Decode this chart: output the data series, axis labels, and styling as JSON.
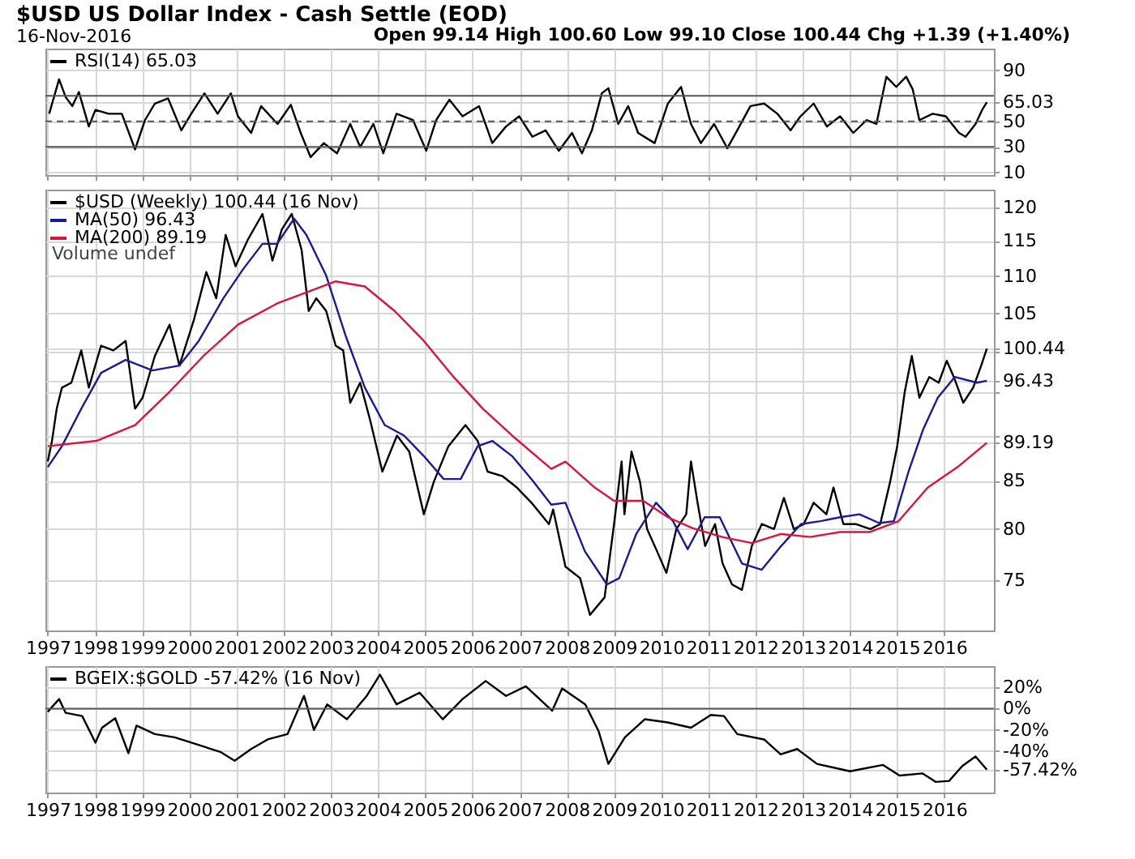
{
  "chart_data": [
    {
      "type": "line",
      "title": "$USD US Dollar Index - Cash Settle (EOD)",
      "subtitle": "16-Nov-2016",
      "annotations": [
        "Open 99.14 High 100.60 Low 99.10 Close 100.44 Chg +1.39 (+1.40%)"
      ],
      "series": [
        {
          "name": "RSI(14) 65.03",
          "color": "#000000",
          "x": [
            1997.03,
            1997.24,
            1997.38,
            1997.52,
            1997.66,
            1997.87,
            1998.01,
            1998.29,
            1998.57,
            1998.85,
            1999.06,
            1999.27,
            1999.55,
            1999.83,
            2000.04,
            2000.32,
            2000.6,
            2000.88,
            2001.03,
            2001.31,
            2001.52,
            2001.87,
            2002.15,
            2002.36,
            2002.57,
            2002.85,
            2003.13,
            2003.41,
            2003.62,
            2003.9,
            2004.11,
            2004.39,
            2004.74,
            2005.02,
            2005.23,
            2005.51,
            2005.79,
            2006.14,
            2006.42,
            2006.71,
            2006.99,
            2007.27,
            2007.55,
            2007.83,
            2008.11,
            2008.32,
            2008.53,
            2008.74,
            2008.88,
            2009.09,
            2009.3,
            2009.51,
            2009.86,
            2010.14,
            2010.42,
            2010.63,
            2010.84,
            2011.12,
            2011.4,
            2011.61,
            2011.89,
            2012.18,
            2012.46,
            2012.74,
            2012.95,
            2013.23,
            2013.51,
            2013.79,
            2014.07,
            2014.35,
            2014.56,
            2014.77,
            2014.98,
            2015.19,
            2015.33,
            2015.47,
            2015.75,
            2016.03,
            2016.31,
            2016.45,
            2016.66,
            2016.8,
            2016.9
          ],
          "values": [
            56,
            83,
            69,
            62,
            73,
            46,
            59,
            56,
            56,
            28,
            51,
            64,
            68,
            43,
            56,
            72,
            56,
            72,
            54,
            41,
            62,
            48,
            63,
            41,
            22,
            33,
            25,
            48,
            30,
            48,
            25,
            56,
            51,
            27,
            51,
            67,
            54,
            62,
            33,
            46,
            54,
            38,
            43,
            27,
            41,
            25,
            43,
            72,
            76,
            48,
            62,
            41,
            33,
            64,
            77,
            48,
            33,
            48,
            29,
            43,
            62,
            64,
            56,
            43,
            54,
            64,
            46,
            54,
            41,
            51,
            48,
            85,
            77,
            85,
            75,
            51,
            56,
            54,
            41,
            38,
            48,
            59,
            65.03
          ]
        }
      ],
      "xlim": [
        1996.95,
        2017.05
      ],
      "xticks": [
        1997,
        1998,
        1999,
        2000,
        2001,
        2002,
        2003,
        2004,
        2005,
        2006,
        2007,
        2008,
        2009,
        2010,
        2011,
        2012,
        2013,
        2014,
        2015,
        2016
      ],
      "ylim": [
        8,
        107
      ],
      "yticks": [
        10,
        30,
        50,
        65.03,
        90
      ],
      "ref_lines": [
        {
          "axis": "y",
          "value": 70,
          "color": "#555555"
        },
        {
          "axis": "y",
          "value": 50,
          "color": "#555555",
          "line_style": "dashed"
        },
        {
          "axis": "y",
          "value": 30,
          "color": "#555555"
        }
      ],
      "grid": true,
      "legend": "top left",
      "tick_labels": "y"
    },
    {
      "type": "line",
      "log": "y",
      "annotations": [
        "Volume undef"
      ],
      "series": [
        {
          "name": "$USD (Weekly) 100.44 (16 Nov)",
          "color": "#000000",
          "x": [
            1997.0,
            1997.09,
            1997.19,
            1997.3,
            1997.5,
            1997.71,
            1997.87,
            1998.13,
            1998.39,
            1998.65,
            1998.85,
            1999.01,
            1999.27,
            1999.58,
            1999.79,
            2000.1,
            2000.36,
            2000.57,
            2000.77,
            2000.98,
            2001.24,
            2001.55,
            2001.76,
            2001.96,
            2002.17,
            2002.38,
            2002.53,
            2002.69,
            2002.9,
            2003.1,
            2003.26,
            2003.41,
            2003.62,
            2003.83,
            2004.09,
            2004.4,
            2004.66,
            2004.97,
            2005.18,
            2005.49,
            2005.85,
            2006.11,
            2006.32,
            2006.64,
            2006.94,
            2007.25,
            2007.62,
            2007.71,
            2007.97,
            2008.28,
            2008.49,
            2008.8,
            2009.0,
            2009.16,
            2009.22,
            2009.37,
            2009.55,
            2009.7,
            2009.91,
            2010.11,
            2010.32,
            2010.53,
            2010.63,
            2010.77,
            2010.93,
            2011.14,
            2011.3,
            2011.5,
            2011.71,
            2011.92,
            2012.13,
            2012.39,
            2012.6,
            2012.81,
            2013.02,
            2013.23,
            2013.5,
            2013.65,
            2013.86,
            2014.12,
            2014.43,
            2014.64,
            2014.85,
            2015.0,
            2015.16,
            2015.31,
            2015.47,
            2015.68,
            2015.88,
            2016.05,
            2016.2,
            2016.4,
            2016.61,
            2016.78,
            2016.9
          ],
          "values": [
            87.1,
            89.4,
            93.1,
            95.6,
            96.2,
            100.2,
            95.6,
            100.8,
            100.2,
            101.4,
            93.1,
            94.4,
            99.5,
            103.5,
            98.3,
            104.2,
            110.6,
            107.0,
            115.9,
            111.4,
            115.2,
            119.0,
            112.2,
            116.7,
            119.0,
            113.7,
            105.3,
            107.0,
            105.3,
            100.8,
            100.2,
            93.8,
            96.2,
            91.8,
            86.0,
            90.0,
            88.2,
            81.5,
            84.9,
            88.8,
            91.2,
            89.4,
            86.0,
            85.5,
            84.3,
            82.7,
            80.5,
            82.0,
            76.3,
            75.2,
            71.8,
            73.4,
            80.5,
            87.1,
            81.5,
            88.2,
            84.9,
            80.0,
            77.8,
            75.7,
            80.0,
            81.5,
            87.1,
            82.7,
            78.3,
            80.5,
            76.6,
            74.6,
            74.1,
            78.3,
            80.5,
            80.0,
            83.2,
            80.0,
            80.5,
            82.7,
            81.5,
            84.3,
            80.5,
            80.5,
            80.0,
            80.5,
            84.9,
            88.8,
            95.1,
            99.5,
            94.4,
            96.9,
            96.2,
            98.9,
            96.9,
            93.8,
            95.6,
            98.3,
            100.44
          ]
        },
        {
          "name": "MA(50) 96.43",
          "color": "#1a1a99",
          "x": [
            1997.0,
            1997.3,
            1997.71,
            1998.13,
            1998.65,
            1999.22,
            1999.79,
            2000.2,
            2000.72,
            2001.14,
            2001.55,
            2001.86,
            2002.22,
            2002.48,
            2002.9,
            2003.31,
            2003.72,
            2004.14,
            2004.55,
            2004.97,
            2005.39,
            2005.75,
            2006.11,
            2006.42,
            2006.84,
            2007.25,
            2007.67,
            2007.97,
            2008.38,
            2008.85,
            2009.11,
            2009.47,
            2009.89,
            2010.25,
            2010.56,
            2010.92,
            2011.24,
            2011.71,
            2012.13,
            2012.54,
            2012.96,
            2013.37,
            2013.79,
            2014.2,
            2014.62,
            2014.93,
            2015.24,
            2015.55,
            2015.86,
            2016.22,
            2016.69,
            2016.9
          ],
          "values": [
            86.5,
            88.8,
            93.1,
            97.4,
            99.0,
            97.7,
            98.3,
            101.4,
            107.0,
            111.0,
            114.6,
            114.6,
            118.3,
            115.9,
            110.1,
            102.1,
            95.6,
            91.2,
            90.0,
            87.7,
            85.2,
            85.2,
            88.8,
            89.4,
            87.7,
            85.2,
            82.5,
            82.7,
            77.8,
            74.6,
            75.2,
            79.5,
            82.7,
            80.8,
            78.0,
            81.2,
            81.2,
            76.6,
            76.0,
            78.3,
            80.5,
            80.8,
            81.2,
            81.5,
            80.6,
            80.8,
            86.0,
            90.7,
            94.4,
            96.9,
            96.2,
            96.43
          ]
        },
        {
          "name": "MA(200) 89.19",
          "color": "#dc143c",
          "x": [
            1997.0,
            1998.03,
            1998.85,
            1999.58,
            2000.3,
            2001.03,
            2001.86,
            2002.48,
            2003.1,
            2003.72,
            2004.35,
            2004.97,
            2005.6,
            2006.22,
            2006.84,
            2007.67,
            2007.97,
            2008.59,
            2009.0,
            2009.62,
            2010.14,
            2010.66,
            2011.29,
            2011.92,
            2012.54,
            2013.16,
            2013.79,
            2014.41,
            2015.03,
            2015.65,
            2016.28,
            2016.9
          ],
          "values": [
            88.8,
            89.4,
            91.2,
            95.1,
            99.5,
            103.5,
            106.3,
            107.8,
            109.3,
            108.6,
            105.3,
            101.4,
            96.9,
            93.1,
            90.0,
            86.3,
            87.1,
            84.3,
            82.9,
            82.9,
            81.2,
            80.1,
            79.2,
            78.6,
            79.5,
            79.2,
            79.7,
            79.7,
            80.8,
            84.3,
            86.5,
            89.19
          ]
        }
      ],
      "xlim": [
        1996.95,
        2017.05
      ],
      "xticks": [
        1997,
        1998,
        1999,
        2000,
        2001,
        2002,
        2003,
        2004,
        2005,
        2006,
        2007,
        2008,
        2009,
        2010,
        2011,
        2012,
        2013,
        2014,
        2015,
        2016
      ],
      "ylim": [
        70.4,
        122.7
      ],
      "yticks": [
        75,
        80,
        85,
        89.19,
        {
          "value": 90,
          "label": null
        },
        {
          "value": 95,
          "label": null
        },
        96.43,
        {
          "value": 100,
          "label": null
        },
        100.44,
        105,
        110,
        115,
        120
      ],
      "grid": true,
      "legend": "top left"
    },
    {
      "type": "line",
      "series": [
        {
          "name": "BGEIX:$GOLD -57.42% (16 Nov)",
          "color": "#000000",
          "x": [
            1997.0,
            1997.24,
            1997.38,
            1997.73,
            1998.01,
            1998.15,
            1998.43,
            1998.71,
            1998.88,
            1999.27,
            1999.69,
            2000.11,
            2000.67,
            2000.96,
            2001.31,
            2001.66,
            2002.08,
            2002.43,
            2002.64,
            2002.92,
            2003.34,
            2003.76,
            2004.04,
            2004.39,
            2004.88,
            2005.37,
            2005.79,
            2006.28,
            2006.71,
            2007.13,
            2007.69,
            2007.9,
            2008.39,
            2008.67,
            2008.88,
            2009.23,
            2009.65,
            2010.14,
            2010.63,
            2011.05,
            2011.33,
            2011.61,
            2012.18,
            2012.53,
            2012.88,
            2013.3,
            2014.0,
            2014.7,
            2015.05,
            2015.54,
            2015.82,
            2016.1,
            2016.38,
            2016.66,
            2016.9
          ],
          "values": [
            -3,
            9,
            -4,
            -7,
            -32,
            -18,
            -9,
            -42,
            -16,
            -24,
            -27,
            -33,
            -41,
            -49,
            -38,
            -29,
            -24,
            12,
            -20,
            4,
            -10,
            12,
            32,
            4,
            15,
            -10,
            9,
            26,
            12,
            21,
            -2,
            19,
            4,
            -21,
            -52,
            -27,
            -10,
            -13,
            -18,
            -6,
            -7,
            -24,
            -29,
            -43,
            -38,
            -52,
            -59,
            -53,
            -63,
            -61,
            -69,
            -68,
            -54,
            -45,
            -57.42
          ]
        }
      ],
      "xlim": [
        1996.95,
        2017.05
      ],
      "xticks": [
        1997,
        1998,
        1999,
        2000,
        2001,
        2002,
        2003,
        2004,
        2005,
        2006,
        2007,
        2008,
        2009,
        2010,
        2011,
        2012,
        2013,
        2014,
        2015,
        2016
      ],
      "ylim": [
        -79,
        40
      ],
      "yticks": [
        {
          "value": 20,
          "label": "20%"
        },
        {
          "value": 0,
          "label": "0%"
        },
        {
          "value": -20,
          "label": "-20%"
        },
        {
          "value": -40,
          "label": "-40%"
        },
        {
          "value": -57.42,
          "label": "-57.42%"
        }
      ],
      "ref_lines": [
        {
          "axis": "y",
          "value": 0,
          "color": "#555555"
        }
      ],
      "grid": true,
      "legend": "top left"
    }
  ]
}
